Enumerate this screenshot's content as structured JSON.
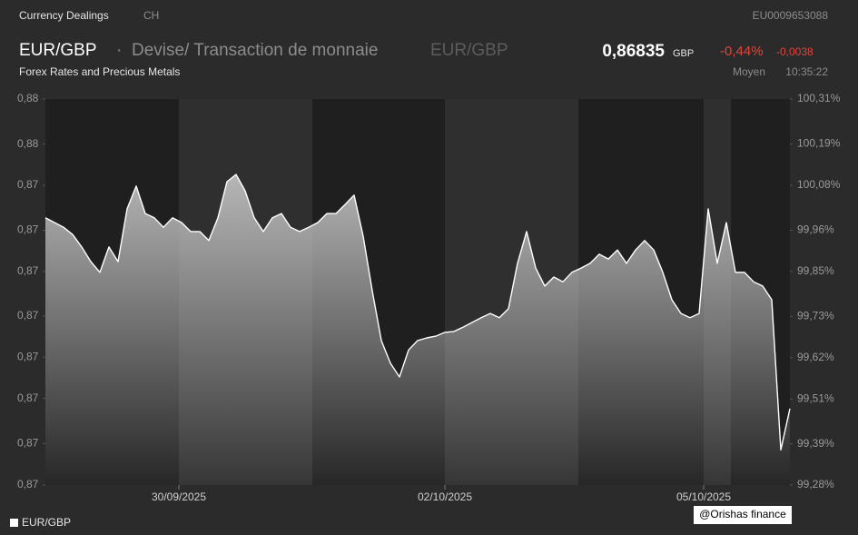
{
  "header": {
    "category": "Currency Dealings",
    "country": "CH",
    "isin": "EU0009653088",
    "symbol": "EUR/GBP",
    "name": "Devise/ Transaction de monnaie",
    "symbol2": "EUR/GBP",
    "price": "0,86835",
    "currency": "GBP",
    "change_pct": "-0,44%",
    "change": "-0,0038",
    "subtitle": "Forex Rates and Precious Metals",
    "price_type": "Moyen",
    "time": "10:35:22"
  },
  "chart_data": {
    "type": "line",
    "series": [
      {
        "name": "EUR/GBP",
        "color": "#ffffff",
        "values": [
          0.87344,
          0.87333,
          0.87322,
          0.87305,
          0.87276,
          0.87242,
          0.87217,
          0.87276,
          0.87242,
          0.87365,
          0.87418,
          0.87354,
          0.87344,
          0.87322,
          0.87344,
          0.87333,
          0.87312,
          0.87312,
          0.87291,
          0.87344,
          0.87428,
          0.87445,
          0.87407,
          0.87344,
          0.87312,
          0.87344,
          0.87354,
          0.87322,
          0.87312,
          0.87322,
          0.87333,
          0.87354,
          0.87354,
          0.87375,
          0.87397,
          0.87301,
          0.87174,
          0.87058,
          0.87005,
          0.86973,
          0.87036,
          0.87058,
          0.87064,
          0.87068,
          0.87077,
          0.87079,
          0.87089,
          0.871,
          0.87111,
          0.87121,
          0.87111,
          0.87132,
          0.87238,
          0.87312,
          0.87227,
          0.87185,
          0.87206,
          0.87195,
          0.87217,
          0.87227,
          0.87238,
          0.87259,
          0.87248,
          0.87269,
          0.87238,
          0.87269,
          0.87291,
          0.87269,
          0.87217,
          0.87153,
          0.87121,
          0.87111,
          0.87121,
          0.87365,
          0.87238,
          0.87333,
          0.87217,
          0.87217,
          0.87195,
          0.87185,
          0.87153,
          0.86803,
          0.86899
        ]
      }
    ],
    "xlim": [
      0,
      82
    ],
    "xticks": [
      {
        "value": 14.7,
        "label": "30/09/2025"
      },
      {
        "value": 44,
        "label": "02/10/2025"
      },
      {
        "value": 72.5,
        "label": "05/10/2025"
      }
    ],
    "ylim": [
      0.86721,
      0.87621
    ],
    "yticks": [
      {
        "value": 0.86721,
        "label": "0,87"
      },
      {
        "value": 0.86818,
        "label": "0,87"
      },
      {
        "value": 0.86923,
        "label": "0,87"
      },
      {
        "value": 0.87019,
        "label": "0,87"
      },
      {
        "value": 0.87115,
        "label": "0,87"
      },
      {
        "value": 0.87219,
        "label": "0,87"
      },
      {
        "value": 0.87315,
        "label": "0,87"
      },
      {
        "value": 0.8742,
        "label": "0,87"
      },
      {
        "value": 0.87516,
        "label": "0,88"
      },
      {
        "value": 0.87621,
        "label": "0,88"
      }
    ],
    "y2lim": [
      99.28,
      100.31
    ],
    "y2ticks": [
      {
        "value": 99.28,
        "label": "99,28%"
      },
      {
        "value": 99.39,
        "label": "99,39%"
      },
      {
        "value": 99.51,
        "label": "99,51%"
      },
      {
        "value": 99.62,
        "label": "99,62%"
      },
      {
        "value": 99.73,
        "label": "99,73%"
      },
      {
        "value": 99.85,
        "label": "99,85%"
      },
      {
        "value": 99.96,
        "label": "99,96%"
      },
      {
        "value": 100.08,
        "label": "100,08%"
      },
      {
        "value": 100.19,
        "label": "100,19%"
      },
      {
        "value": 100.31,
        "label": "100,31%"
      }
    ]
  },
  "watermark": "@Orishas finance"
}
